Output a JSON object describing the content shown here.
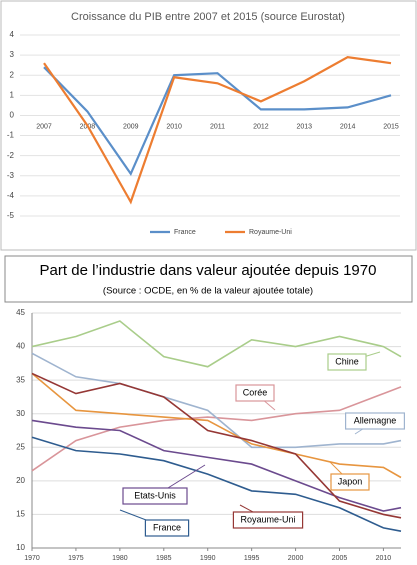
{
  "chart_data": [
    {
      "type": "line",
      "title": "Croissance du PIB entre 2007 et 2015 (source Eurostat)",
      "categories": [
        "2007",
        "2008",
        "2009",
        "2010",
        "2011",
        "2012",
        "2013",
        "2014",
        "2015"
      ],
      "series": [
        {
          "name": "France",
          "color": "#5b8fc9",
          "values": [
            2.4,
            0.2,
            -2.9,
            2.0,
            2.1,
            0.3,
            0.3,
            0.4,
            1.0
          ]
        },
        {
          "name": "Royaume-Uni",
          "color": "#ed7d31",
          "values": [
            2.6,
            -0.5,
            -4.3,
            1.9,
            1.6,
            0.7,
            1.7,
            2.9,
            2.6
          ]
        }
      ],
      "ylim": [
        -5,
        4
      ],
      "yticks": [
        4,
        3,
        2,
        1,
        0,
        -1,
        -2,
        -3,
        -4,
        -5
      ],
      "grid": true,
      "legend": "bottom"
    },
    {
      "type": "line",
      "title": "Part de l’industrie  dans valeur ajoutée depuis 1970",
      "subtitle": "(Source : OCDE, en % de la valeur ajoutée totale)",
      "x": [
        1970,
        1975,
        1980,
        1985,
        1990,
        1995,
        2000,
        2005,
        2010,
        2012
      ],
      "series": [
        {
          "name": "Chine",
          "color": "#a9cd8a",
          "values": [
            40,
            41.5,
            43.8,
            38.5,
            37,
            41,
            40,
            41.5,
            40,
            38.5
          ]
        },
        {
          "name": "Corée",
          "color": "#d9959a",
          "values": [
            21.5,
            26,
            28,
            29,
            29.5,
            29,
            30,
            30.5,
            33,
            34
          ]
        },
        {
          "name": "Allemagne",
          "color": "#9fb4cf",
          "values": [
            39,
            35.5,
            34.5,
            32.5,
            30.5,
            25,
            25,
            25.5,
            25.5,
            26
          ]
        },
        {
          "name": "Japon",
          "color": "#e7953f",
          "values": [
            36,
            30.5,
            30,
            29.5,
            29,
            25.5,
            24,
            22.5,
            22,
            20.5
          ]
        },
        {
          "name": "Etats-Unis",
          "color": "#6b4a8e",
          "values": [
            29,
            28,
            27.5,
            24.5,
            23.5,
            22.5,
            20,
            17.5,
            15.5,
            16
          ]
        },
        {
          "name": "France",
          "color": "#2e5c8f",
          "values": [
            26.5,
            24.5,
            24,
            23,
            21,
            18.5,
            18,
            16,
            13,
            12.5
          ]
        },
        {
          "name": "Royaume-Uni",
          "color": "#953735",
          "values": [
            36,
            33,
            34.5,
            32.5,
            27.5,
            26,
            24,
            17,
            15,
            14.5
          ]
        }
      ],
      "xlim": [
        1970,
        2012
      ],
      "xticks": [
        1970,
        1975,
        1980,
        1985,
        1990,
        1995,
        2000,
        2005,
        2010
      ],
      "ylim": [
        10,
        45
      ],
      "yticks": [
        10,
        15,
        20,
        25,
        30,
        35,
        40,
        45
      ],
      "grid": true
    }
  ]
}
